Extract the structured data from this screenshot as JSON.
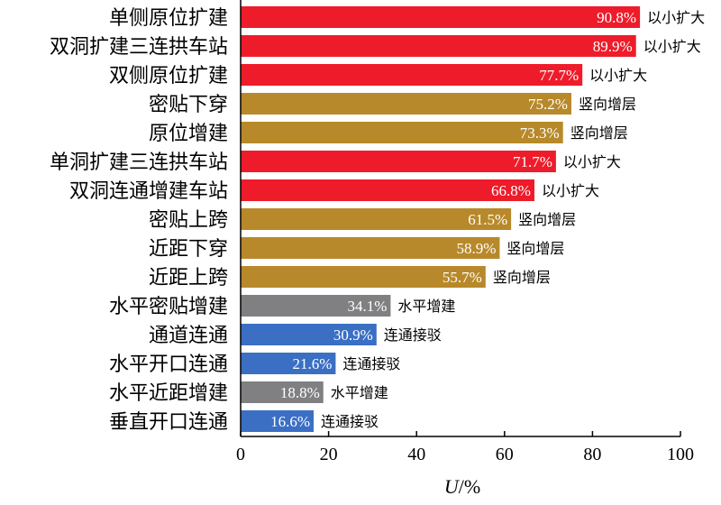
{
  "chart_data": {
    "type": "bar",
    "orientation": "horizontal",
    "categories": [
      "单侧原位扩建",
      "双洞扩建三连拱车站",
      "双侧原位扩建",
      "密贴下穿",
      "原位增建",
      "单洞扩建三连拱车站",
      "双洞连通增建车站",
      "密贴上跨",
      "近距下穿",
      "近距上跨",
      "水平密贴增建",
      "通道连通",
      "水平开口连通",
      "水平近距增建",
      "垂直开口连通"
    ],
    "values": [
      90.8,
      89.9,
      77.7,
      75.2,
      73.3,
      71.7,
      66.8,
      61.5,
      58.9,
      55.7,
      34.1,
      30.9,
      21.6,
      18.8,
      16.6
    ],
    "value_labels": [
      "90.8%",
      "89.9%",
      "77.7%",
      "75.2%",
      "73.3%",
      "71.7%",
      "66.8%",
      "61.5%",
      "58.9%",
      "55.7%",
      "34.1%",
      "30.9%",
      "21.6%",
      "18.8%",
      "16.6%"
    ],
    "groups": [
      "以小扩大",
      "以小扩大",
      "以小扩大",
      "竖向增层",
      "竖向增层",
      "以小扩大",
      "以小扩大",
      "竖向增层",
      "竖向增层",
      "竖向增层",
      "水平增建",
      "连通接驳",
      "连通接驳",
      "水平增建",
      "连通接驳"
    ],
    "group_colors": {
      "以小扩大": "#ee1c2a",
      "竖向增层": "#b8892a",
      "水平增建": "#808083",
      "连通接驳": "#3b6fc4"
    },
    "x_ticks": [
      "0",
      "20",
      "40",
      "60",
      "80",
      "100"
    ],
    "xlim": [
      0,
      100
    ],
    "xlabel_var": "U",
    "xlabel_unit": "/%",
    "grid": false
  }
}
